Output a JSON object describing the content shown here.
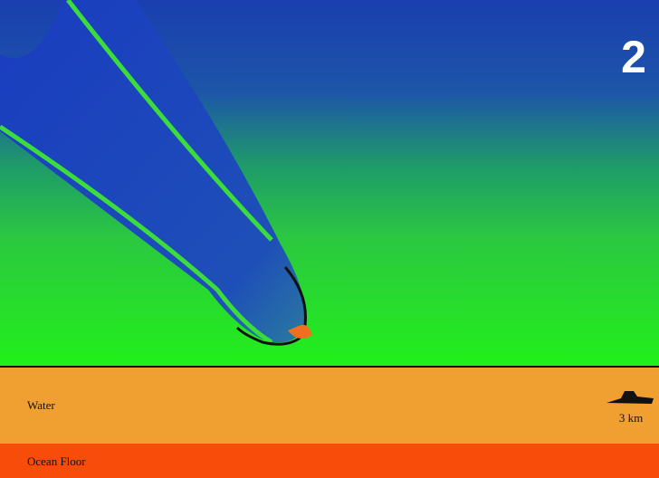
{
  "frame": {
    "number": "2"
  },
  "labels": {
    "water": "Water",
    "ocean_floor": "Ocean Floor",
    "scale": "3 km"
  }
}
